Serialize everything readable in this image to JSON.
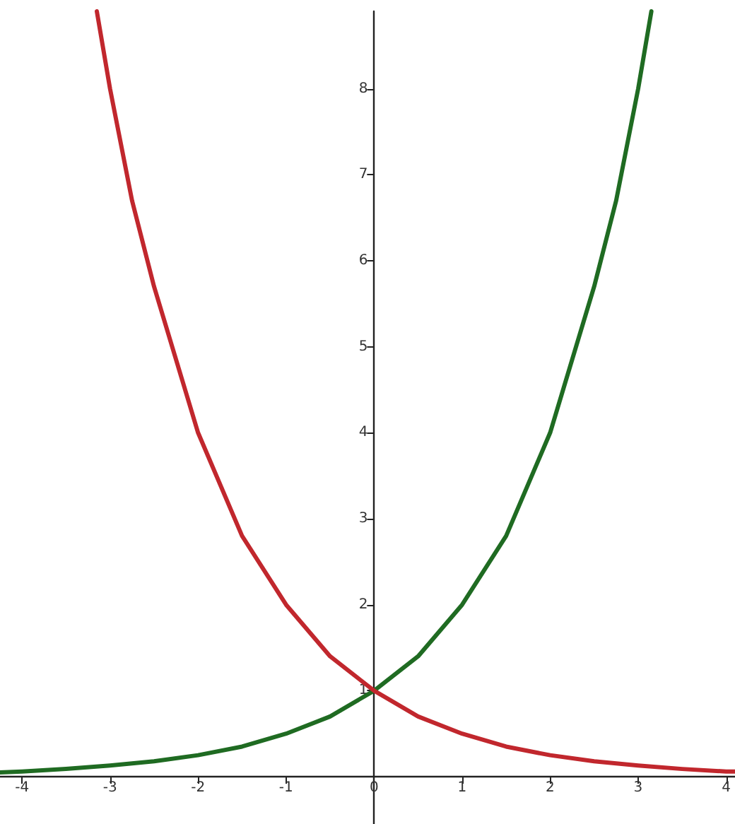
{
  "chart_data": {
    "type": "line",
    "xlim": [
      -4.25,
      4.1
    ],
    "ylim": [
      -0.55,
      8.9
    ],
    "xticks": [
      -4,
      -3,
      -2,
      -1,
      0,
      1,
      2,
      3,
      4
    ],
    "yticks": [
      1,
      2,
      3,
      4,
      5,
      6,
      7,
      8
    ],
    "marker": "none",
    "line_style": "solid",
    "series": [
      {
        "color": "#1f6b22",
        "x": [
          -4.25,
          -4,
          -3.5,
          -3,
          -2.5,
          -2,
          -1.5,
          -1,
          -0.5,
          0,
          0.5,
          1,
          1.5,
          2,
          2.5,
          2.75,
          3,
          3.15
        ],
        "values": [
          0.05,
          0.06,
          0.09,
          0.13,
          0.18,
          0.25,
          0.35,
          0.5,
          0.7,
          1,
          1.4,
          2,
          2.8,
          4,
          5.7,
          6.7,
          8,
          8.9
        ]
      },
      {
        "color": "#c1272d",
        "x": [
          -3.15,
          -3,
          -2.75,
          -2.5,
          -2,
          -1.5,
          -1,
          -0.5,
          0,
          0.5,
          1,
          1.5,
          2,
          2.5,
          3,
          3.5,
          4,
          4.1
        ],
        "values": [
          8.9,
          8,
          6.7,
          5.7,
          4,
          2.8,
          2,
          1.4,
          1,
          0.7,
          0.5,
          0.35,
          0.25,
          0.18,
          0.13,
          0.09,
          0.06,
          0.06
        ]
      }
    ]
  }
}
